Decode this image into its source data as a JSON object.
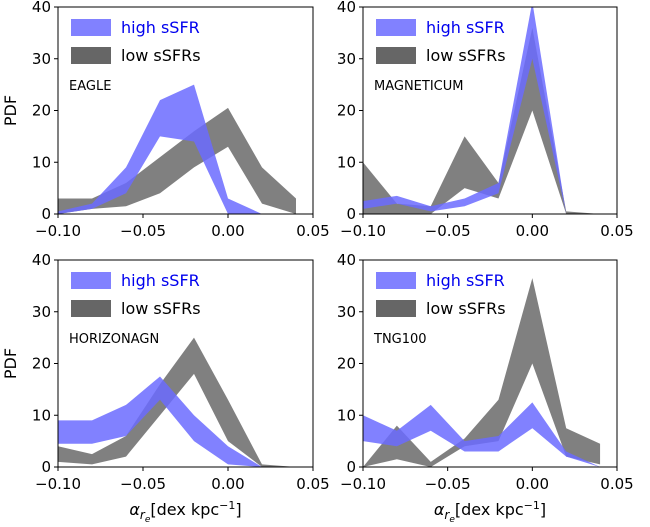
{
  "chart_data": [
    {
      "type": "area",
      "panel": "EAGLE",
      "xlim": [
        -0.1,
        0.05
      ],
      "ylim": [
        0,
        40
      ],
      "xticks": [
        "−0.10",
        "−0.05",
        "0.00",
        "0.05"
      ],
      "yticks": [
        "0",
        "10",
        "20",
        "30",
        "40"
      ],
      "xlabel": "",
      "ylabel": "PDF",
      "legend": [
        "high sSFR",
        "low sSFRs"
      ],
      "x": [
        -0.1,
        -0.08,
        -0.06,
        -0.04,
        -0.02,
        0.0,
        0.02,
        0.04
      ],
      "series": [
        {
          "name": "high sSFR",
          "color": "#6b6bff",
          "lower": [
            0.0,
            1.0,
            4.0,
            15.0,
            14.0,
            0.0,
            0.0,
            0.0
          ],
          "upper": [
            0.5,
            2.0,
            9.0,
            22.0,
            25.0,
            3.0,
            0.0,
            0.0
          ]
        },
        {
          "name": "low sSFRs",
          "color": "#555555",
          "lower": [
            0.0,
            1.0,
            1.5,
            4.0,
            9.0,
            13.0,
            2.0,
            0.0
          ],
          "upper": [
            3.0,
            3.0,
            6.0,
            11.0,
            16.0,
            20.5,
            9.0,
            3.0
          ]
        }
      ]
    },
    {
      "type": "area",
      "panel": "MAGNETICUM",
      "xlim": [
        -0.1,
        0.05
      ],
      "ylim": [
        0,
        40
      ],
      "xticks": [
        "−0.10",
        "−0.05",
        "0.00",
        "0.05"
      ],
      "yticks": [
        "0",
        "10",
        "20",
        "30",
        "40"
      ],
      "xlabel": "",
      "ylabel": "",
      "legend": [
        "high sSFR",
        "low sSFRs"
      ],
      "x": [
        -0.1,
        -0.08,
        -0.06,
        -0.04,
        -0.02,
        0.0,
        0.02,
        0.04
      ],
      "series": [
        {
          "name": "high sSFR",
          "color": "#6b6bff",
          "lower": [
            1.0,
            2.0,
            0.5,
            1.5,
            4.0,
            30.0,
            0.0,
            0.0
          ],
          "upper": [
            2.5,
            3.5,
            1.5,
            3.0,
            6.0,
            41.0,
            0.0,
            0.0
          ]
        },
        {
          "name": "low sSFRs",
          "color": "#555555",
          "lower": [
            0.0,
            0.0,
            0.0,
            5.0,
            3.0,
            20.0,
            0.0,
            0.0
          ],
          "upper": [
            10.0,
            2.0,
            1.5,
            15.0,
            6.0,
            36.0,
            0.5,
            0.0
          ]
        }
      ]
    },
    {
      "type": "area",
      "panel": "HORIZONAGN",
      "xlim": [
        -0.1,
        0.05
      ],
      "ylim": [
        0,
        40
      ],
      "xticks": [
        "−0.10",
        "−0.05",
        "0.00",
        "0.05"
      ],
      "yticks": [
        "0",
        "10",
        "20",
        "30",
        "40"
      ],
      "xlabel": "α_re [dex kpc⁻¹]",
      "ylabel": "PDF",
      "legend": [
        "high sSFR",
        "low sSFRs"
      ],
      "x": [
        -0.1,
        -0.08,
        -0.06,
        -0.04,
        -0.02,
        0.0,
        0.02,
        0.04
      ],
      "series": [
        {
          "name": "high sSFR",
          "color": "#6b6bff",
          "lower": [
            4.5,
            4.5,
            6.0,
            13.0,
            5.0,
            0.5,
            0.0,
            0.0
          ],
          "upper": [
            9.0,
            9.0,
            12.0,
            17.5,
            10.0,
            4.0,
            0.0,
            0.0
          ]
        },
        {
          "name": "low sSFRs",
          "color": "#555555",
          "lower": [
            1.0,
            0.5,
            2.0,
            10.0,
            18.0,
            5.0,
            0.0,
            0.0
          ],
          "upper": [
            4.0,
            2.5,
            6.0,
            16.0,
            25.0,
            13.0,
            0.5,
            0.0
          ]
        }
      ]
    },
    {
      "type": "area",
      "panel": "TNG100",
      "xlim": [
        -0.1,
        0.05
      ],
      "ylim": [
        0,
        40
      ],
      "xticks": [
        "−0.10",
        "−0.05",
        "0.00",
        "0.05"
      ],
      "yticks": [
        "0",
        "10",
        "20",
        "30",
        "40"
      ],
      "xlabel": "α_re [dex kpc⁻¹]",
      "ylabel": "",
      "legend": [
        "high sSFR",
        "low sSFRs"
      ],
      "x": [
        -0.1,
        -0.08,
        -0.06,
        -0.04,
        -0.02,
        0.0,
        0.02,
        0.04
      ],
      "series": [
        {
          "name": "high sSFR",
          "color": "#6b6bff",
          "lower": [
            5.0,
            4.0,
            7.0,
            3.0,
            3.0,
            7.5,
            2.0,
            0.0
          ],
          "upper": [
            10.0,
            7.0,
            12.0,
            5.0,
            6.0,
            12.5,
            3.0,
            0.0
          ]
        },
        {
          "name": "low sSFRs",
          "color": "#555555",
          "lower": [
            0.0,
            1.5,
            0.0,
            4.0,
            5.0,
            20.0,
            2.0,
            0.5
          ],
          "upper": [
            0.0,
            8.0,
            1.0,
            5.5,
            13.0,
            36.5,
            7.5,
            4.5
          ]
        }
      ]
    }
  ]
}
